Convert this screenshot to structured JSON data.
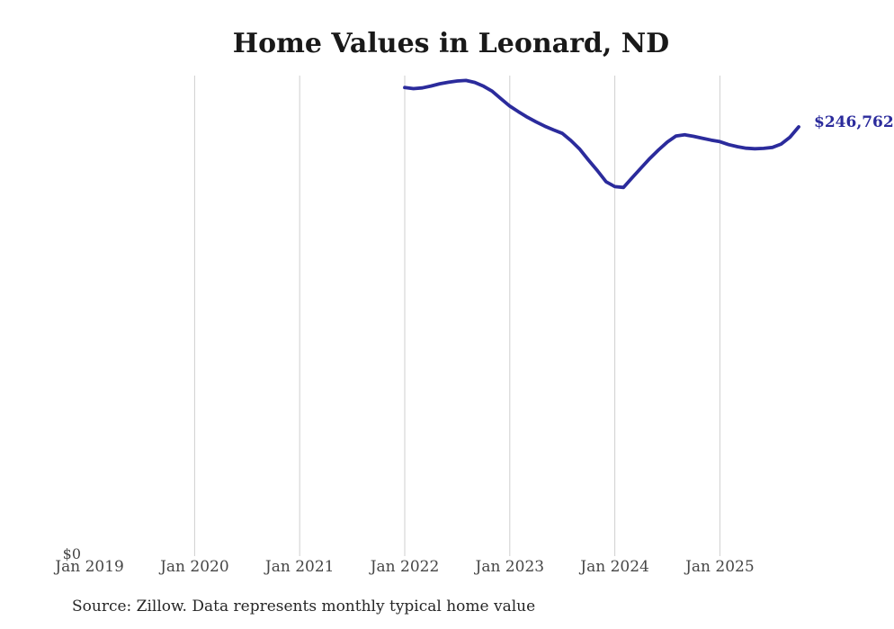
{
  "colors": {
    "line": "#2b2b9c",
    "end_label_text": "#2b2b9c",
    "gridline": "#cfcfcf",
    "axis_text": "#464646",
    "title_text": "#191919",
    "source_text": "#262626",
    "background": "#ffffff"
  },
  "chart_data": {
    "type": "line",
    "title": "Home Values in Leonard, ND",
    "source": "Source: Zillow. Data represents monthly typical home value",
    "xlabel": "",
    "ylabel": "",
    "grid": "vertical-only",
    "legend": "none",
    "end_label": "$246,762",
    "y_axis": {
      "min": 0,
      "zero_tick_label": "$0"
    },
    "x_tick_labels": [
      {
        "label": "Jan 2019",
        "year": 2019
      },
      {
        "label": "Jan 2020",
        "year": 2020
      },
      {
        "label": "Jan 2021",
        "year": 2021
      },
      {
        "label": "Jan 2022",
        "year": 2022
      },
      {
        "label": "Jan 2023",
        "year": 2023
      },
      {
        "label": "Jan 2024",
        "year": 2024
      },
      {
        "label": "Jan 2025",
        "year": 2025
      }
    ],
    "gridline_years": [
      2020,
      2021,
      2022,
      2023,
      2024,
      2025
    ],
    "series": [
      {
        "name": "Monthly typical home value",
        "color": "#2b2b9c",
        "months": [
          "Jan 2022",
          "Feb 2022",
          "Mar 2022",
          "Apr 2022",
          "May 2022",
          "Jun 2022",
          "Jul 2022",
          "Aug 2022",
          "Sep 2022",
          "Oct 2022",
          "Nov 2022",
          "Dec 2022",
          "Jan 2023",
          "Feb 2023",
          "Mar 2023",
          "Apr 2023",
          "May 2023",
          "Jun 2023",
          "Jul 2023",
          "Aug 2023",
          "Sep 2023",
          "Oct 2023",
          "Nov 2023",
          "Dec 2023",
          "Jan 2024",
          "Feb 2024",
          "Mar 2024",
          "Apr 2024",
          "May 2024",
          "Jun 2024",
          "Jul 2024",
          "Aug 2024",
          "Sep 2024",
          "Oct 2024",
          "Nov 2024",
          "Dec 2024",
          "Jan 2025",
          "Feb 2025",
          "Mar 2025",
          "Apr 2025",
          "May 2025",
          "Jun 2025",
          "Jul 2025",
          "Aug 2025",
          "Sep 2025",
          "Oct 2025"
        ],
        "values": [
          269500,
          268900,
          269300,
          270400,
          271700,
          272600,
          273300,
          273600,
          272500,
          270300,
          267400,
          263000,
          258800,
          255500,
          252400,
          249700,
          247200,
          245000,
          243000,
          238800,
          233800,
          227500,
          221500,
          215000,
          212200,
          211700,
          217500,
          223000,
          228500,
          233500,
          238000,
          241500,
          242200,
          241300,
          240200,
          239100,
          238200,
          236500,
          235300,
          234400,
          234100,
          234300,
          234900,
          236800,
          240800,
          246762
        ]
      }
    ]
  }
}
